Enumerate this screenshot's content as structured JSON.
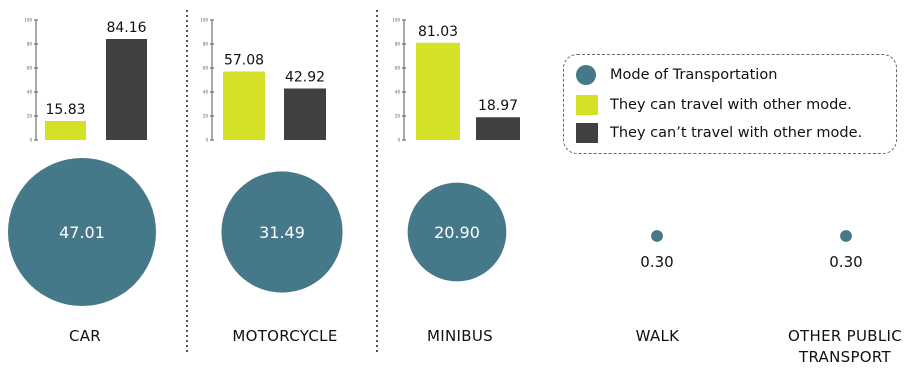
{
  "colors": {
    "yes": "#d4e126",
    "no": "#404040",
    "circle": "#457888",
    "axis": "#555555",
    "divider": "#555555"
  },
  "legend": {
    "items": [
      {
        "label": "Mode of Transportation",
        "marker": "circle",
        "color": "#457888"
      },
      {
        "label": "They can travel with other mode.",
        "marker": "square",
        "color": "#d4e126"
      },
      {
        "label": "They can’t travel with other mode.",
        "marker": "square",
        "color": "#404040"
      }
    ]
  },
  "categories": [
    {
      "name": "CAR",
      "share": 47.01
    },
    {
      "name": "MOTORCYCLE",
      "share": 31.49
    },
    {
      "name": "MINIBUS",
      "share": 20.9
    },
    {
      "name": "WALK",
      "share": 0.3
    },
    {
      "name": "OTHER PUBLIC\nTRANSPORT",
      "share": 0.3
    }
  ],
  "chart_data": [
    {
      "type": "bar",
      "categories": [
        "CAR"
      ],
      "series": [
        {
          "name": "They can travel with other mode.",
          "values": [
            15.83
          ]
        },
        {
          "name": "They can’t travel with other mode.",
          "values": [
            84.16
          ]
        }
      ],
      "ylim": [
        0,
        100
      ],
      "yticks": [
        "0",
        "20",
        "40",
        "60",
        "80",
        "100"
      ]
    },
    {
      "type": "bar",
      "categories": [
        "MOTORCYCLE"
      ],
      "series": [
        {
          "name": "They can travel with other mode.",
          "values": [
            57.08
          ]
        },
        {
          "name": "They can’t travel with other mode.",
          "values": [
            42.92
          ]
        }
      ],
      "ylim": [
        0,
        100
      ],
      "yticks": [
        "0",
        "20",
        "40",
        "60",
        "80",
        "100"
      ]
    },
    {
      "type": "bar",
      "categories": [
        "MINIBUS"
      ],
      "series": [
        {
          "name": "They can travel with other mode.",
          "values": [
            81.03
          ]
        },
        {
          "name": "They can’t travel with other mode.",
          "values": [
            18.97
          ]
        }
      ],
      "ylim": [
        0,
        100
      ],
      "yticks": [
        "0",
        "20",
        "40",
        "60",
        "80",
        "100"
      ]
    },
    {
      "type": "scatter",
      "series": [
        {
          "name": "Mode of Transportation",
          "categories": [
            "CAR",
            "MOTORCYCLE",
            "MINIBUS",
            "WALK",
            "OTHER PUBLIC TRANSPORT"
          ],
          "values": [
            47.01,
            31.49,
            20.9,
            0.3,
            0.3
          ]
        }
      ]
    }
  ]
}
